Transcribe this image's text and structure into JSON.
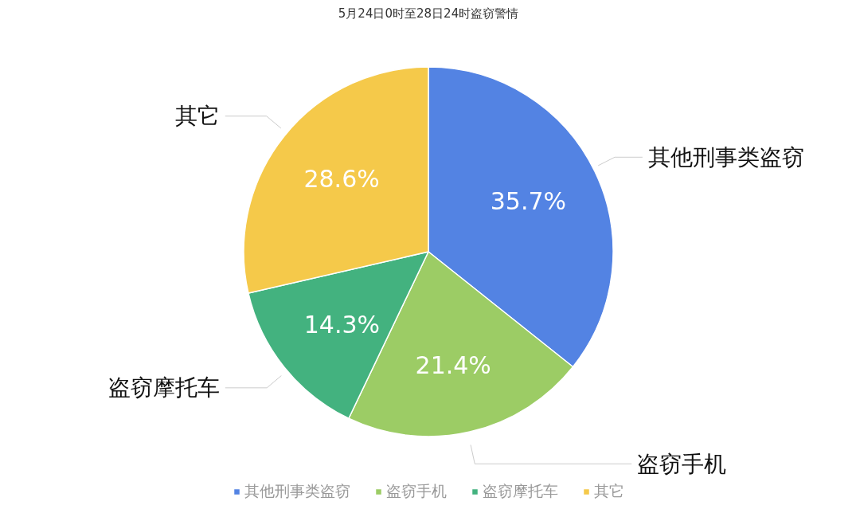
{
  "chart_data": {
    "type": "pie",
    "title": "5月24日0时至28日24时盗窃警情",
    "categories": [
      "其他刑事类盗窃",
      "盗窃手机",
      "盗窃摩托车",
      "其它"
    ],
    "values": [
      35.7,
      21.4,
      14.3,
      28.6
    ],
    "colors": [
      "#5383e3",
      "#9ccc65",
      "#43b27f",
      "#f5c94a"
    ],
    "value_labels": [
      "35.7%",
      "21.4%",
      "14.3%",
      "28.6%"
    ],
    "legend": "bottom"
  }
}
